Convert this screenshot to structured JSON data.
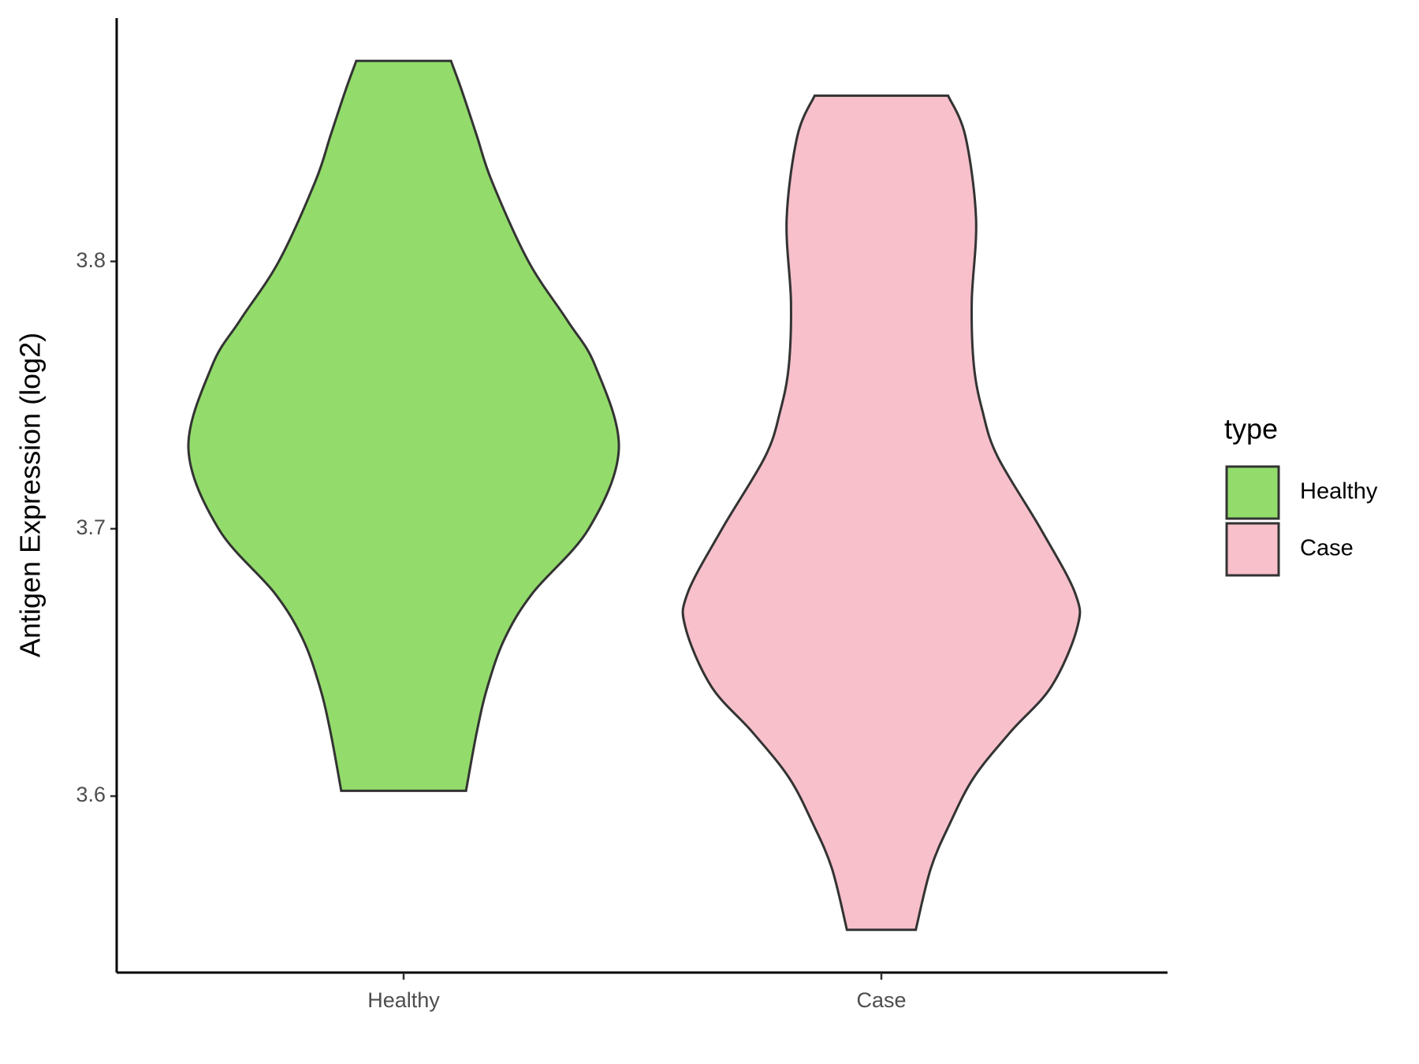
{
  "chart_data": {
    "type": "violin",
    "ylabel": "Antigen Expression (log2)",
    "legend_title": "type",
    "legend_position": "right",
    "categories": [
      "Healthy",
      "Case"
    ],
    "ylim": [
      3.534,
      3.891
    ],
    "yticks": [
      3.6,
      3.7,
      3.8
    ],
    "series": [
      {
        "name": "Healthy",
        "color": "#93dc6b",
        "values": [
          3.875,
          3.864,
          3.847,
          3.83,
          3.8,
          3.778,
          3.761,
          3.73,
          3.7,
          3.676,
          3.659,
          3.641,
          3.624,
          3.602
        ],
        "density": [
          0.22,
          0.27,
          0.34,
          0.41,
          0.58,
          0.76,
          0.89,
          1.0,
          0.86,
          0.6,
          0.47,
          0.39,
          0.34,
          0.29
        ]
      },
      {
        "name": "Case",
        "color": "#f7c0cb",
        "values": [
          3.862,
          3.847,
          3.816,
          3.785,
          3.761,
          3.744,
          3.727,
          3.7,
          3.676,
          3.663,
          3.641,
          3.624,
          3.607,
          3.59,
          3.573,
          3.55
        ],
        "density": [
          0.31,
          0.39,
          0.44,
          0.42,
          0.43,
          0.47,
          0.54,
          0.74,
          0.9,
          0.91,
          0.79,
          0.6,
          0.43,
          0.32,
          0.23,
          0.16
        ]
      }
    ]
  }
}
